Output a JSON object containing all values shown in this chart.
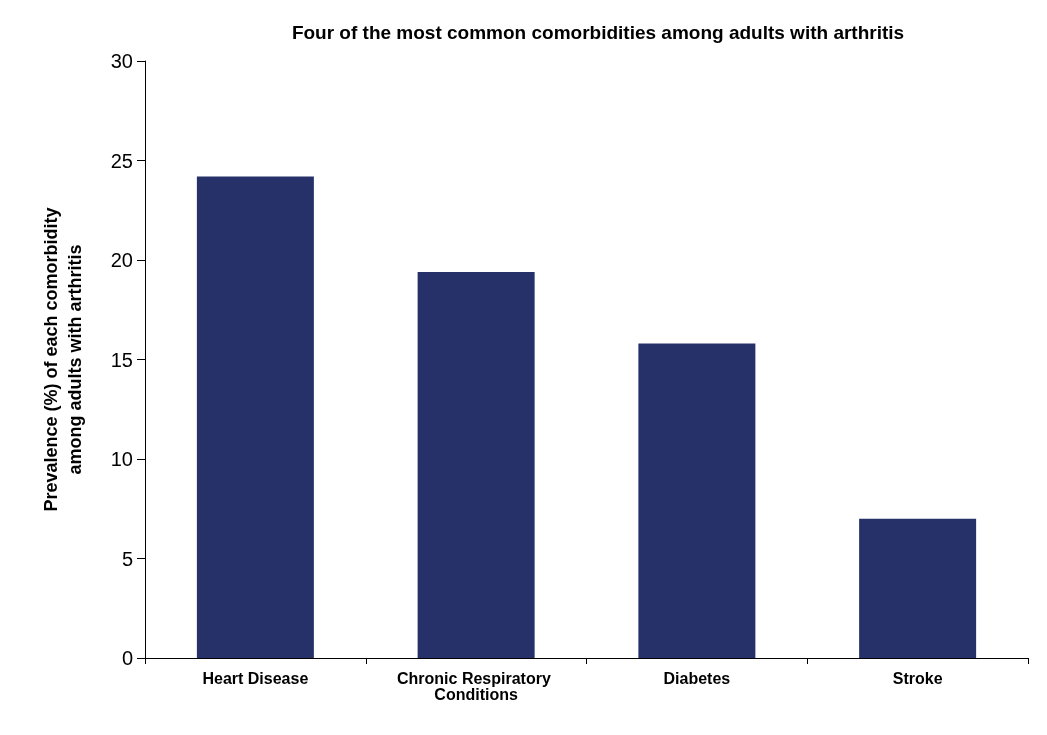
{
  "chart_data": {
    "type": "bar",
    "title": "Four of the most common comorbidities among adults with arthritis",
    "ylabel": "Prevalence (%) of each comorbidity among adults with arthritis",
    "categories": [
      "Heart Disease",
      "Chronic Respiratory Conditions",
      "Diabetes",
      "Stroke"
    ],
    "values": [
      24.2,
      19.4,
      15.8,
      7.0
    ],
    "color": "#263069",
    "ylim": [
      0,
      30
    ],
    "yticks": [
      0,
      5,
      10,
      15,
      20,
      25,
      30
    ],
    "grid": false
  }
}
